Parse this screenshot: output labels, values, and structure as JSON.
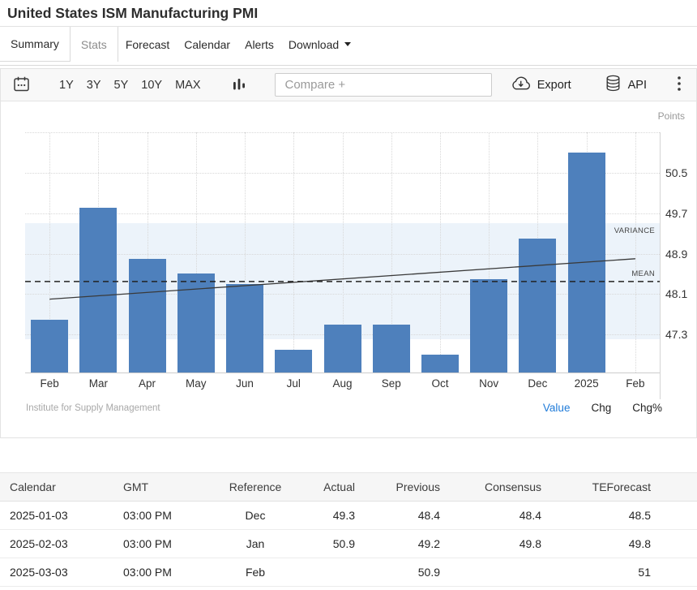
{
  "header": {
    "title": "United States ISM Manufacturing PMI"
  },
  "tabs": {
    "items": [
      {
        "label": "Summary",
        "boxed": true,
        "active": false
      },
      {
        "label": "Stats",
        "boxed": true,
        "active": true
      },
      {
        "label": "Forecast",
        "boxed": false,
        "active": false
      },
      {
        "label": "Calendar",
        "boxed": false,
        "active": false
      },
      {
        "label": "Alerts",
        "boxed": false,
        "active": false
      },
      {
        "label": "Download",
        "boxed": false,
        "active": false,
        "has_caret": true
      }
    ]
  },
  "toolbar": {
    "ranges": [
      "1Y",
      "3Y",
      "5Y",
      "10Y",
      "MAX"
    ],
    "compare_placeholder": "Compare +",
    "export_label": "Export",
    "api_label": "API"
  },
  "chart_data": {
    "type": "bar",
    "title": "United States ISM Manufacturing PMI",
    "unit_label": "Points",
    "categories": [
      "Feb",
      "Mar",
      "Apr",
      "May",
      "Jun",
      "Jul",
      "Aug",
      "Sep",
      "Oct",
      "Nov",
      "Dec",
      "2025",
      "Feb"
    ],
    "values": [
      47.6,
      49.8,
      48.8,
      48.5,
      48.3,
      47.0,
      47.5,
      47.5,
      46.9,
      48.4,
      49.2,
      50.9,
      null
    ],
    "yticks": [
      47.3,
      48.1,
      48.9,
      49.7,
      50.5
    ],
    "ylim": [
      46.55,
      51.3
    ],
    "grid": true,
    "legend_position": "none",
    "mean": 48.35,
    "mean_label": "MEAN",
    "variance_band": [
      47.2,
      49.5
    ],
    "variance_label": "VARIANCE",
    "trendline": {
      "start": 48.0,
      "end": 48.8
    },
    "bar_color": "#4e80bc",
    "band_color": "#ecf3fa",
    "xlabel": "",
    "ylabel": "Points"
  },
  "chart_footer": {
    "attribution": "Institute for Supply Management",
    "links": [
      {
        "label": "Value",
        "active": true
      },
      {
        "label": "Chg",
        "active": false
      },
      {
        "label": "Chg%",
        "active": false
      }
    ],
    "active_color": "#1f7bd9"
  },
  "table": {
    "headers": [
      "Calendar",
      "GMT",
      "Reference",
      "Actual",
      "Previous",
      "Consensus",
      "TEForecast"
    ],
    "rows": [
      [
        "2025-01-03",
        "03:00 PM",
        "Dec",
        "49.3",
        "48.4",
        "48.4",
        "48.5"
      ],
      [
        "2025-02-03",
        "03:00 PM",
        "Jan",
        "50.9",
        "49.2",
        "49.8",
        "49.8"
      ],
      [
        "2025-03-03",
        "03:00 PM",
        "Feb",
        "",
        "50.9",
        "",
        "51"
      ]
    ]
  }
}
